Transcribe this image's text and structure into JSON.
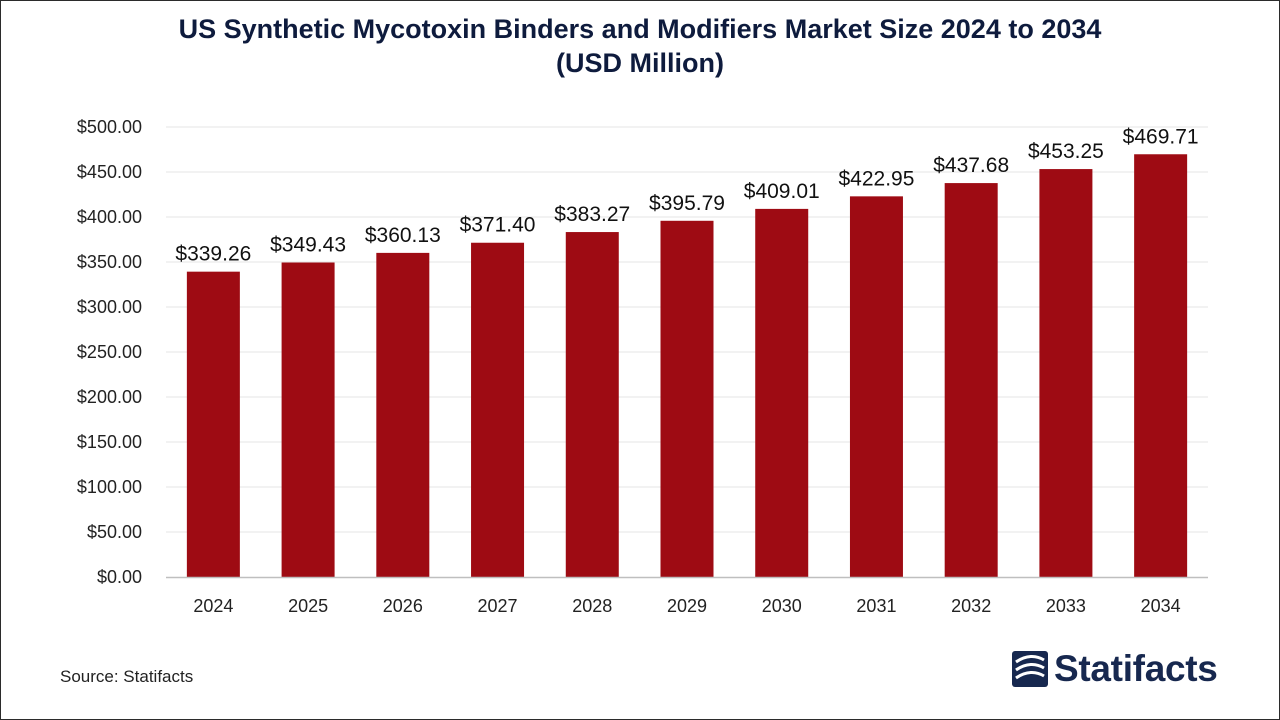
{
  "chart_data": {
    "type": "bar",
    "title_line1": "US Synthetic Mycotoxin Binders and Modifiers Market Size 2024 to 2034",
    "title_line2": "(USD Million)",
    "categories": [
      "2024",
      "2025",
      "2026",
      "2027",
      "2028",
      "2029",
      "2030",
      "2031",
      "2032",
      "2033",
      "2034"
    ],
    "values": [
      339.26,
      349.43,
      360.13,
      371.4,
      383.27,
      395.79,
      409.01,
      422.95,
      437.68,
      453.25,
      469.71
    ],
    "data_labels": [
      "$339.26",
      "$349.43",
      "$360.13",
      "$371.40",
      "$383.27",
      "$395.79",
      "$409.01",
      "$422.95",
      "$437.68",
      "$453.25",
      "$469.71"
    ],
    "y_ticks": [
      "$0.00",
      "$50.00",
      "$100.00",
      "$150.00",
      "$200.00",
      "$250.00",
      "$300.00",
      "$350.00",
      "$400.00",
      "$450.00",
      "$500.00"
    ],
    "ylim": [
      0,
      500
    ],
    "xlabel": "",
    "ylabel": "",
    "grid": true,
    "bar_color": "#9e0b13"
  },
  "footer": {
    "source": "Source: Statifacts",
    "brand": "Statifacts",
    "logo_icon": "statifacts-logo-icon"
  }
}
